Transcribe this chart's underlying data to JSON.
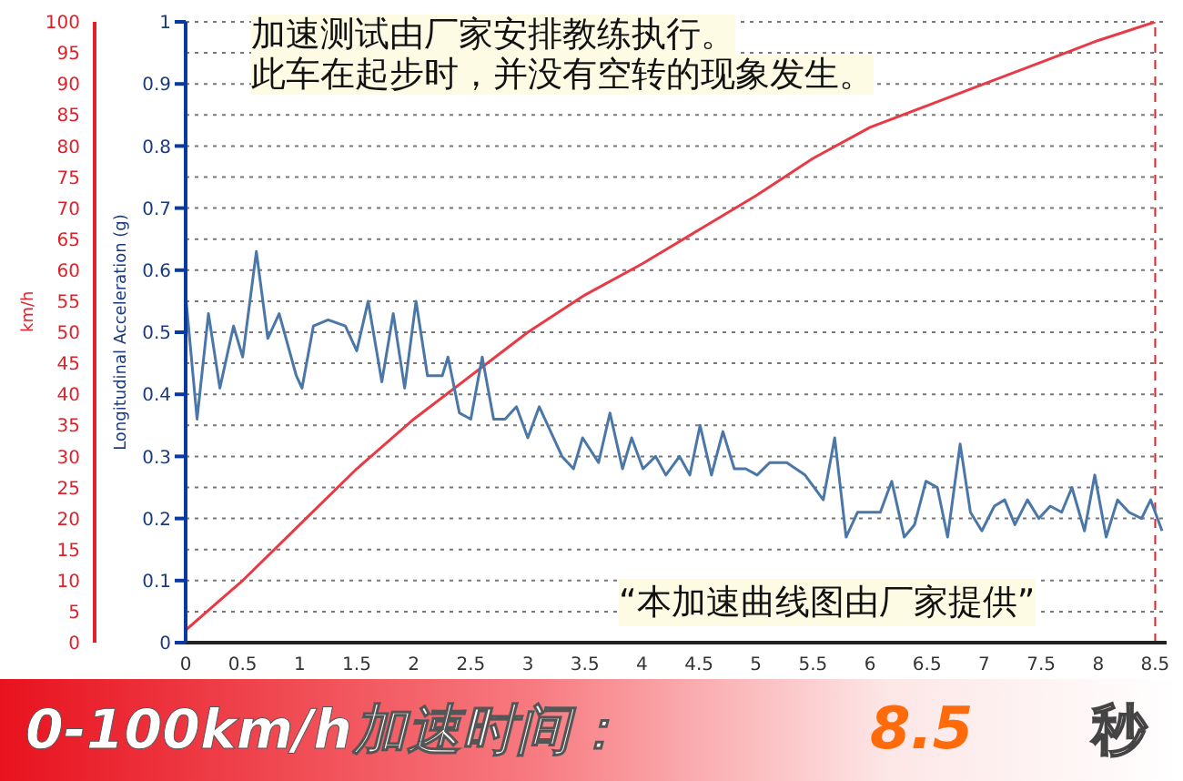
{
  "chart_data": {
    "type": "line",
    "ylabel": "Longitudinal Acceleration (g)",
    "y2label": "km/h",
    "xlim": [
      0,
      8.6
    ],
    "xticks": [
      0,
      0.5,
      1,
      1.5,
      2,
      2.5,
      3,
      3.5,
      4,
      4.5,
      5,
      5.5,
      6,
      6.5,
      7,
      7.5,
      8,
      8.5
    ],
    "ylim": [
      0,
      1
    ],
    "yticks": [
      0,
      0.1,
      0.2,
      0.3,
      0.4,
      0.5,
      0.6,
      0.7,
      0.8,
      0.9,
      1
    ],
    "y2lim": [
      0,
      100
    ],
    "y2ticks": [
      0,
      5,
      10,
      15,
      20,
      25,
      30,
      35,
      40,
      45,
      50,
      55,
      60,
      65,
      70,
      75,
      80,
      85,
      90,
      95,
      100
    ],
    "grid": true,
    "legend": false,
    "marker": "none",
    "line_style": "solid",
    "ref_lines": [
      {
        "axis": "x",
        "value": 8.5,
        "color": "#e0202a",
        "line_style": "dashed"
      }
    ],
    "series": [
      {
        "color": "#e83a44",
        "axis": "y2",
        "x": [
          0,
          0.5,
          1,
          1.5,
          2,
          2.5,
          3,
          3.5,
          4,
          4.5,
          5,
          5.5,
          6,
          6.5,
          7,
          7.5,
          8,
          8.5
        ],
        "values": [
          2,
          10,
          19,
          28,
          36,
          43,
          50,
          56,
          61,
          66.5,
          72,
          78,
          83,
          86.5,
          90,
          93.5,
          97,
          100
        ]
      },
      {
        "color": "#4a76a8",
        "x": [
          0,
          0.1,
          0.2,
          0.3,
          0.42,
          0.5,
          0.62,
          0.72,
          0.82,
          0.97,
          1.02,
          1.12,
          1.25,
          1.4,
          1.5,
          1.6,
          1.72,
          1.82,
          1.92,
          2.02,
          2.12,
          2.25,
          2.3,
          2.4,
          2.5,
          2.6,
          2.7,
          2.8,
          2.9,
          3.0,
          3.1,
          3.2,
          3.3,
          3.4,
          3.48,
          3.62,
          3.72,
          3.83,
          3.91,
          4.01,
          4.12,
          4.21,
          4.33,
          4.42,
          4.51,
          4.61,
          4.71,
          4.81,
          4.91,
          5.01,
          5.12,
          5.27,
          5.43,
          5.59,
          5.69,
          5.79,
          5.89,
          6.0,
          6.09,
          6.19,
          6.3,
          6.39,
          6.49,
          6.59,
          6.68,
          6.79,
          6.88,
          6.98,
          7.09,
          7.18,
          7.27,
          7.38,
          7.48,
          7.58,
          7.68,
          7.77,
          7.88,
          7.97,
          8.07,
          8.17,
          8.27,
          8.38,
          8.46,
          8.56
        ],
        "values": [
          0.56,
          0.36,
          0.53,
          0.41,
          0.51,
          0.46,
          0.63,
          0.49,
          0.53,
          0.43,
          0.41,
          0.51,
          0.52,
          0.51,
          0.47,
          0.55,
          0.42,
          0.53,
          0.41,
          0.55,
          0.43,
          0.43,
          0.46,
          0.37,
          0.36,
          0.46,
          0.36,
          0.36,
          0.38,
          0.33,
          0.38,
          0.34,
          0.3,
          0.28,
          0.33,
          0.29,
          0.37,
          0.28,
          0.33,
          0.28,
          0.3,
          0.27,
          0.3,
          0.27,
          0.35,
          0.27,
          0.34,
          0.28,
          0.28,
          0.27,
          0.29,
          0.29,
          0.27,
          0.23,
          0.33,
          0.17,
          0.21,
          0.21,
          0.21,
          0.26,
          0.17,
          0.19,
          0.26,
          0.25,
          0.17,
          0.32,
          0.21,
          0.18,
          0.22,
          0.23,
          0.19,
          0.23,
          0.2,
          0.22,
          0.21,
          0.25,
          0.18,
          0.27,
          0.17,
          0.23,
          0.21,
          0.2,
          0.23,
          0.18
        ]
      }
    ],
    "annotations": [
      "加速测试由厂家安排教练执行。",
      "此车在起步时，并没有空转的现象发生。",
      "“本加速曲线图由厂家提供”",
      "0-100km/h加速时间：",
      "8.5",
      "秒"
    ]
  }
}
